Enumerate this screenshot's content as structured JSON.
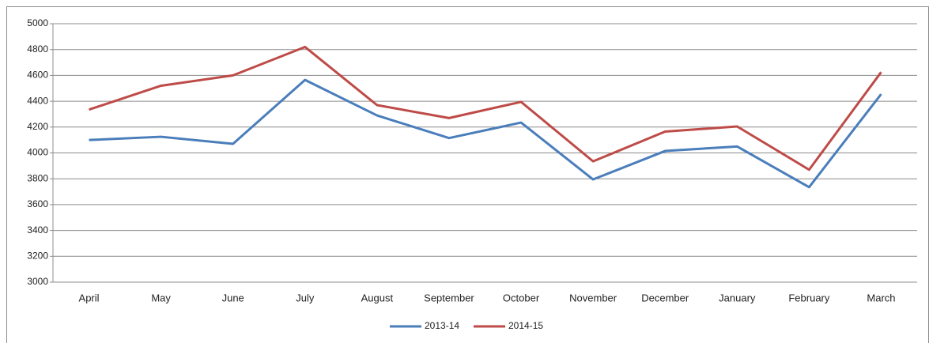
{
  "chart_data": {
    "type": "line",
    "categories": [
      "April",
      "May",
      "June",
      "July",
      "August",
      "September",
      "October",
      "November",
      "December",
      "January",
      "February",
      "March"
    ],
    "series": [
      {
        "name": "2013-14",
        "color": "#4a7ebb",
        "values": [
          4100,
          4125,
          4070,
          4565,
          4290,
          4115,
          4235,
          3795,
          4015,
          4050,
          3735,
          4455
        ]
      },
      {
        "name": "2014-15",
        "color": "#be4b48",
        "values": [
          4335,
          4520,
          4600,
          4820,
          4370,
          4270,
          4395,
          3935,
          4165,
          4205,
          3870,
          4625
        ]
      }
    ],
    "ylim": [
      3000,
      5000
    ],
    "yticks": [
      3000,
      3200,
      3400,
      3600,
      3800,
      4000,
      4200,
      4400,
      4600,
      4800,
      5000
    ],
    "grid": true,
    "legend": "bottom"
  }
}
